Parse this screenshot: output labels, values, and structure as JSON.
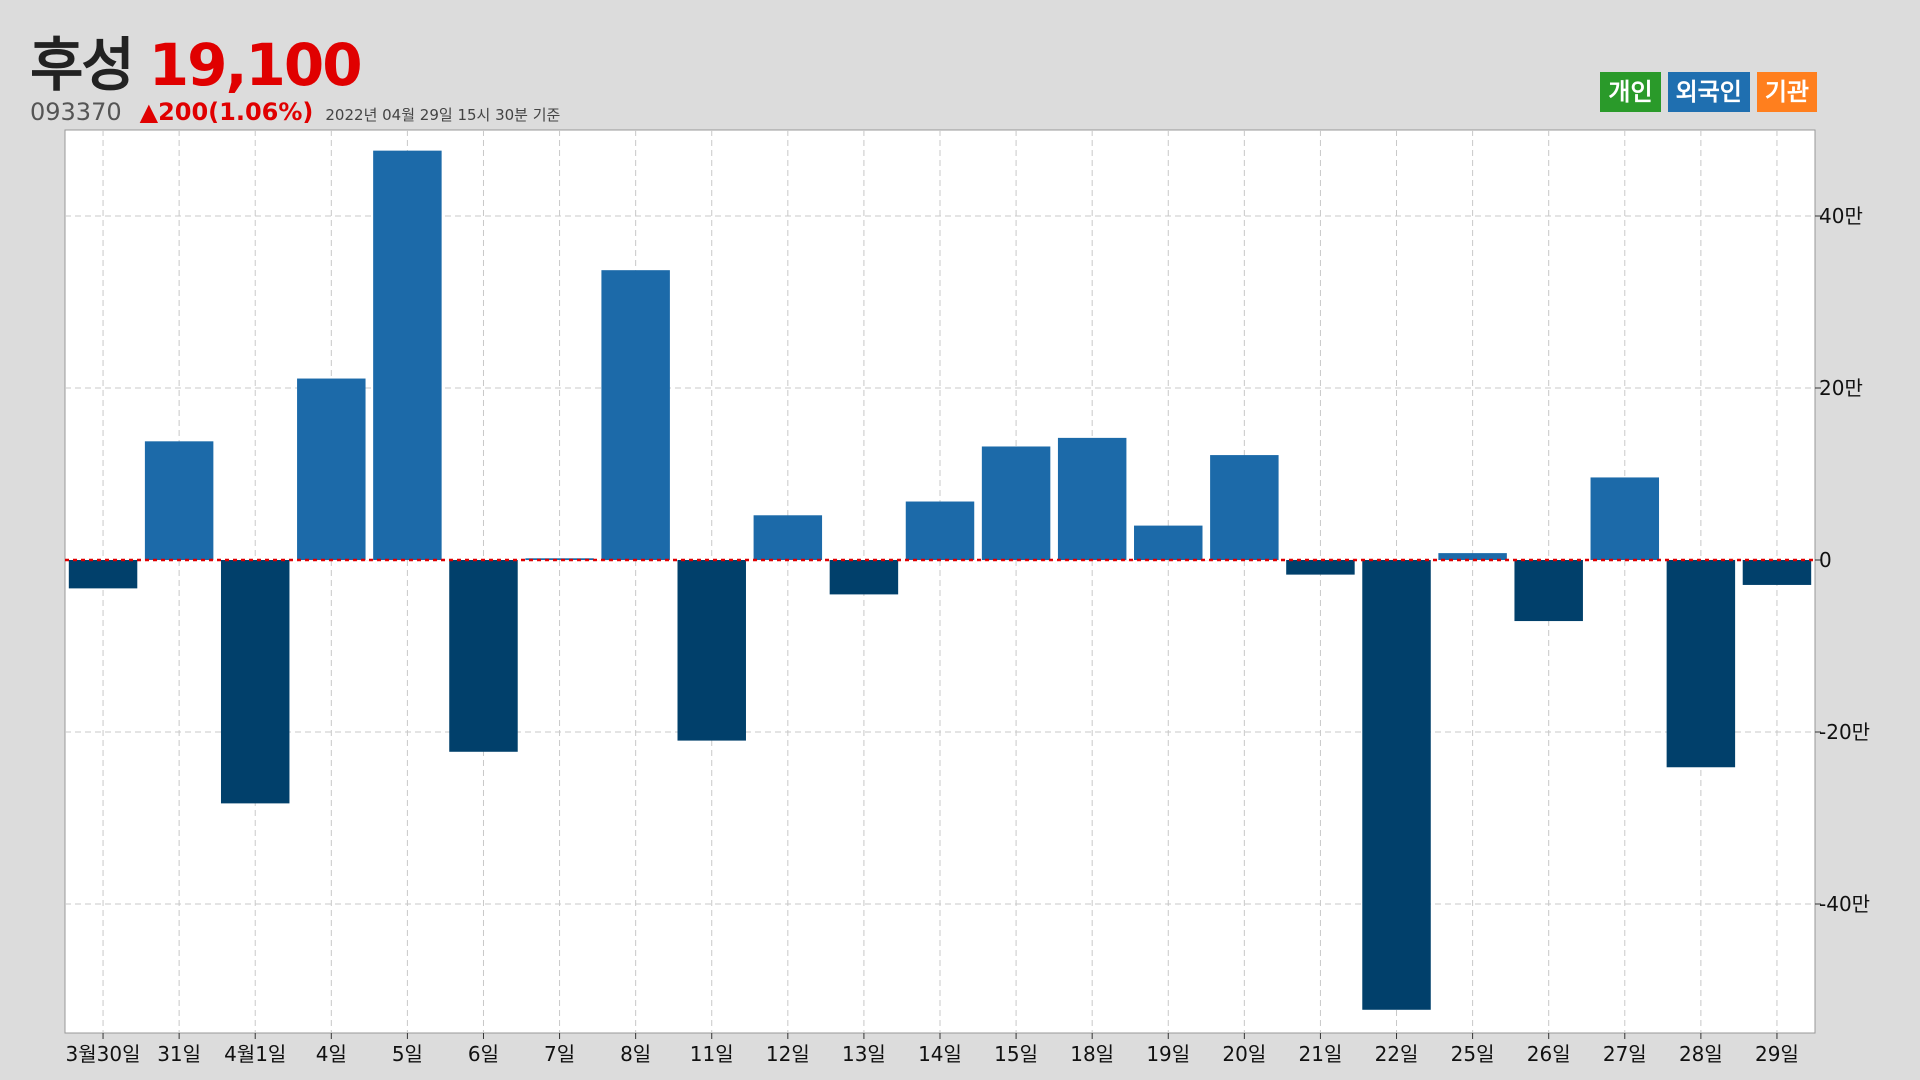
{
  "header": {
    "name": "후성",
    "price": "19,100",
    "code": "093370",
    "change": "▲200(1.06%)",
    "timestamp": "2022년 04월 29일 15시 30분 기준"
  },
  "legend": [
    {
      "label": "개인",
      "color": "#2a9a2a"
    },
    {
      "label": "외국인",
      "color": "#1f6fb0"
    },
    {
      "label": "기관",
      "color": "#ff7f1e"
    }
  ],
  "chart_data": {
    "type": "bar",
    "categories": [
      "3월30일",
      "31일",
      "4월1일",
      "4일",
      "5일",
      "6일",
      "7일",
      "8일",
      "11일",
      "12일",
      "13일",
      "14일",
      "15일",
      "18일",
      "19일",
      "20일",
      "21일",
      "22일",
      "25일",
      "26일",
      "27일",
      "28일",
      "29일"
    ],
    "series": [
      {
        "name": "외국인",
        "values": [
          -33000,
          138000,
          -283000,
          211000,
          476000,
          -223000,
          2000,
          337000,
          -210000,
          52000,
          -40000,
          68000,
          132000,
          142000,
          40000,
          122000,
          -17000,
          -523000,
          8000,
          -71000,
          96000,
          -241000,
          -29000
        ]
      }
    ],
    "ylim": [
      -550000,
      500000
    ],
    "yticks": [
      -400000,
      -200000,
      0,
      200000,
      400000
    ],
    "ytick_labels": [
      "-40만",
      "-20만",
      "0",
      "20만",
      "40만"
    ],
    "grid": true,
    "positive_color": "#1c6aa9",
    "negative_color": "#01406b",
    "zero_line_color": "#e00000"
  }
}
